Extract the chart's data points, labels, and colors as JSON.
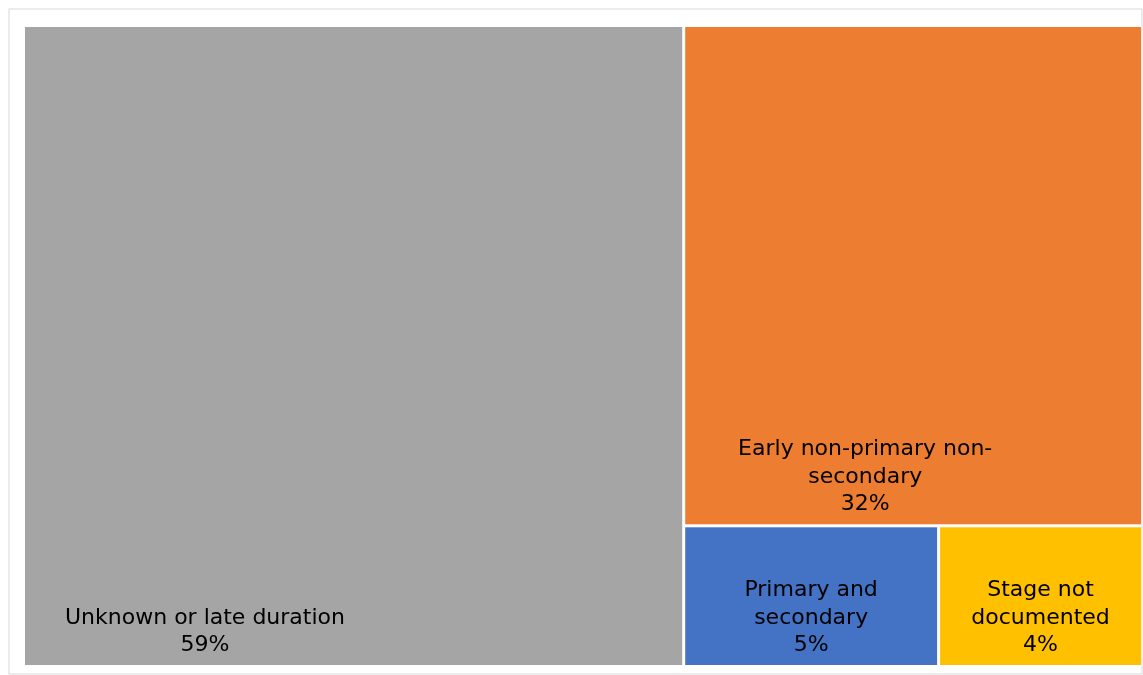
{
  "chart_data": {
    "type": "other",
    "categories": [
      "Unknown or late duration",
      "Early non-primary non-secondary",
      "Primary and secondary",
      "Stage not documented"
    ],
    "values": [
      59,
      32,
      5,
      4
    ],
    "colors": [
      "#a5a5a5",
      "#ed7d31",
      "#4472c4",
      "#ffc000"
    ],
    "value_labels": [
      "59%",
      "32%",
      "5%",
      "4%"
    ]
  }
}
